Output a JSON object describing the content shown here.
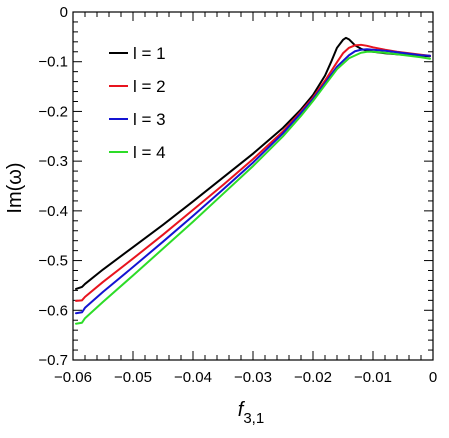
{
  "chart_data": {
    "type": "line",
    "title": "",
    "xlabel": "f",
    "xlabel_subscript": "3,1",
    "ylabel": "Im(ω)",
    "xlim": [
      -0.06,
      0
    ],
    "ylim": [
      -0.7,
      0
    ],
    "grid": false,
    "legend_position": "top-left",
    "x_ticks": [
      -0.06,
      -0.05,
      -0.04,
      -0.03,
      -0.02,
      -0.01,
      0
    ],
    "x_tick_labels": [
      "−0.06",
      "−0.05",
      "−0.04",
      "−0.03",
      "−0.02",
      "−0.01",
      "0"
    ],
    "y_ticks": [
      0,
      -0.1,
      -0.2,
      -0.3,
      -0.4,
      -0.5,
      -0.6,
      -0.7
    ],
    "y_tick_labels": [
      "0",
      "−0.1",
      "−0.2",
      "−0.3",
      "−0.4",
      "−0.5",
      "−0.6",
      "−0.7"
    ],
    "series": [
      {
        "name": "l = 1",
        "color": "#000000",
        "x": [
          -0.0595,
          -0.0585,
          -0.058,
          -0.055,
          -0.05,
          -0.045,
          -0.04,
          -0.035,
          -0.03,
          -0.025,
          -0.022,
          -0.02,
          -0.018,
          -0.017,
          -0.016,
          -0.015,
          -0.0145,
          -0.014,
          -0.013,
          -0.012,
          -0.011,
          -0.01,
          -0.008,
          -0.006,
          -0.004,
          -0.002,
          -0.0005
        ],
        "y": [
          -0.557,
          -0.553,
          -0.547,
          -0.518,
          -0.473,
          -0.428,
          -0.381,
          -0.333,
          -0.285,
          -0.233,
          -0.196,
          -0.167,
          -0.128,
          -0.101,
          -0.072,
          -0.056,
          -0.052,
          -0.055,
          -0.067,
          -0.074,
          -0.078,
          -0.08,
          -0.083,
          -0.085,
          -0.087,
          -0.088,
          -0.089
        ]
      },
      {
        "name": "l = 2",
        "color": "#e8141e",
        "x": [
          -0.0595,
          -0.0585,
          -0.058,
          -0.055,
          -0.05,
          -0.045,
          -0.04,
          -0.035,
          -0.03,
          -0.025,
          -0.022,
          -0.02,
          -0.018,
          -0.016,
          -0.015,
          -0.014,
          -0.013,
          -0.012,
          -0.011,
          -0.01,
          -0.008,
          -0.006,
          -0.004,
          -0.002,
          -0.0005
        ],
        "y": [
          -0.581,
          -0.58,
          -0.573,
          -0.543,
          -0.496,
          -0.448,
          -0.398,
          -0.348,
          -0.296,
          -0.24,
          -0.2,
          -0.172,
          -0.138,
          -0.101,
          -0.083,
          -0.072,
          -0.067,
          -0.066,
          -0.068,
          -0.071,
          -0.076,
          -0.08,
          -0.083,
          -0.086,
          -0.088
        ]
      },
      {
        "name": "l = 3",
        "color": "#1414d2",
        "x": [
          -0.0595,
          -0.0585,
          -0.058,
          -0.055,
          -0.05,
          -0.045,
          -0.04,
          -0.035,
          -0.03,
          -0.025,
          -0.022,
          -0.02,
          -0.018,
          -0.016,
          -0.014,
          -0.013,
          -0.012,
          -0.011,
          -0.01,
          -0.008,
          -0.006,
          -0.004,
          -0.002,
          -0.0005
        ],
        "y": [
          -0.606,
          -0.604,
          -0.595,
          -0.563,
          -0.513,
          -0.462,
          -0.41,
          -0.357,
          -0.303,
          -0.244,
          -0.203,
          -0.175,
          -0.143,
          -0.11,
          -0.087,
          -0.079,
          -0.076,
          -0.075,
          -0.076,
          -0.078,
          -0.081,
          -0.084,
          -0.087,
          -0.088
        ]
      },
      {
        "name": "l = 4",
        "color": "#2ddc28",
        "x": [
          -0.0595,
          -0.0585,
          -0.058,
          -0.055,
          -0.05,
          -0.045,
          -0.04,
          -0.035,
          -0.03,
          -0.025,
          -0.022,
          -0.02,
          -0.018,
          -0.016,
          -0.014,
          -0.012,
          -0.011,
          -0.01,
          -0.008,
          -0.006,
          -0.004,
          -0.002,
          -0.0005
        ],
        "y": [
          -0.627,
          -0.625,
          -0.616,
          -0.583,
          -0.53,
          -0.476,
          -0.422,
          -0.366,
          -0.31,
          -0.25,
          -0.209,
          -0.179,
          -0.147,
          -0.115,
          -0.093,
          -0.082,
          -0.08,
          -0.08,
          -0.082,
          -0.085,
          -0.088,
          -0.091,
          -0.094
        ]
      }
    ]
  }
}
